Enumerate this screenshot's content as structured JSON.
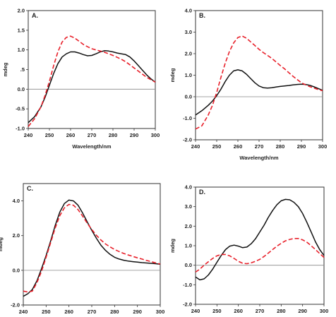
{
  "chart_data": [
    {
      "type": "line",
      "panel": "A.",
      "xlabel": "Wavelength/nm",
      "ylabel": "mdeg",
      "xlim": [
        240,
        300
      ],
      "ylim": [
        -1.0,
        2.0
      ],
      "xticks": [
        "240",
        "250",
        "260",
        "270",
        "280",
        "290",
        "300"
      ],
      "yticks": [
        "-1.0",
        "-0.5",
        "0.0",
        ".5",
        "1.0",
        "1.5",
        "2.0"
      ],
      "yticks_values": [
        -1.0,
        -0.5,
        0.0,
        0.5,
        1.0,
        1.5,
        2.0
      ],
      "series": [
        {
          "color": "#111111",
          "dash": "solid",
          "x": [
            240,
            243,
            246,
            248,
            250,
            252,
            254,
            256,
            258,
            260,
            262,
            264,
            266,
            268,
            270,
            272,
            274,
            276,
            278,
            280,
            282,
            284,
            286,
            288,
            290,
            292,
            294,
            296,
            298,
            300
          ],
          "y": [
            -0.85,
            -0.7,
            -0.45,
            -0.2,
            0.1,
            0.4,
            0.65,
            0.82,
            0.9,
            0.95,
            0.95,
            0.92,
            0.88,
            0.85,
            0.86,
            0.9,
            0.95,
            0.98,
            0.97,
            0.95,
            0.92,
            0.9,
            0.88,
            0.82,
            0.72,
            0.6,
            0.48,
            0.36,
            0.26,
            0.18
          ]
        },
        {
          "color": "#e8202a",
          "dash": "dashed",
          "x": [
            240,
            243,
            246,
            248,
            250,
            252,
            254,
            256,
            258,
            260,
            262,
            264,
            266,
            268,
            270,
            272,
            274,
            276,
            278,
            280,
            282,
            284,
            286,
            288,
            290,
            292,
            294,
            296,
            298,
            300
          ],
          "y": [
            -0.95,
            -0.75,
            -0.45,
            -0.15,
            0.2,
            0.6,
            0.95,
            1.2,
            1.32,
            1.35,
            1.3,
            1.22,
            1.14,
            1.08,
            1.03,
            1.0,
            0.97,
            0.94,
            0.9,
            0.86,
            0.81,
            0.76,
            0.7,
            0.62,
            0.54,
            0.46,
            0.38,
            0.3,
            0.24,
            0.18
          ]
        }
      ]
    },
    {
      "type": "line",
      "panel": "B.",
      "xlabel": "Wavelength/nm",
      "ylabel": "mdeg",
      "xlim": [
        240,
        300
      ],
      "ylim": [
        -2.0,
        4.0
      ],
      "xticks": [
        "240",
        "250",
        "260",
        "270",
        "280",
        "290",
        "300"
      ],
      "yticks": [
        "-2.0",
        "-1.0",
        "0.0",
        "1.0",
        "2.0",
        "3.0",
        "4.0"
      ],
      "yticks_values": [
        -2.0,
        -1.0,
        0.0,
        1.0,
        2.0,
        3.0,
        4.0
      ],
      "series": [
        {
          "color": "#111111",
          "dash": "solid",
          "x": [
            240,
            243,
            246,
            248,
            250,
            252,
            254,
            256,
            258,
            260,
            262,
            264,
            266,
            268,
            270,
            272,
            274,
            276,
            278,
            280,
            282,
            284,
            286,
            288,
            290,
            292,
            294,
            296,
            298,
            300
          ],
          "y": [
            -0.85,
            -0.65,
            -0.4,
            -0.2,
            0.05,
            0.35,
            0.7,
            1.0,
            1.2,
            1.25,
            1.2,
            1.05,
            0.85,
            0.65,
            0.5,
            0.42,
            0.4,
            0.42,
            0.45,
            0.48,
            0.5,
            0.52,
            0.55,
            0.57,
            0.58,
            0.57,
            0.53,
            0.46,
            0.38,
            0.3
          ]
        },
        {
          "color": "#e8202a",
          "dash": "dashed",
          "x": [
            240,
            243,
            246,
            248,
            250,
            252,
            254,
            256,
            258,
            260,
            262,
            264,
            266,
            268,
            270,
            272,
            274,
            276,
            278,
            280,
            282,
            284,
            286,
            288,
            290,
            292,
            294,
            296,
            298,
            300
          ],
          "y": [
            -1.5,
            -1.35,
            -0.85,
            -0.4,
            0.2,
            0.9,
            1.55,
            2.1,
            2.5,
            2.75,
            2.82,
            2.72,
            2.55,
            2.38,
            2.2,
            2.05,
            1.92,
            1.78,
            1.62,
            1.45,
            1.3,
            1.12,
            0.95,
            0.8,
            0.65,
            0.55,
            0.47,
            0.4,
            0.33,
            0.28
          ]
        }
      ]
    },
    {
      "type": "line",
      "panel": "C.",
      "xlabel": "",
      "ylabel": "mdeg",
      "xlim": [
        240,
        300
      ],
      "ylim": [
        -2.0,
        5.0
      ],
      "xticks": [
        "240",
        "250",
        "260",
        "270",
        "280",
        "290",
        "300"
      ],
      "yticks": [
        "-2.0",
        "0.0",
        "2.0",
        "4.0"
      ],
      "yticks_values": [
        -2.0,
        0.0,
        2.0,
        4.0
      ],
      "series": [
        {
          "color": "#111111",
          "dash": "solid",
          "x": [
            240,
            242,
            244,
            246,
            248,
            250,
            252,
            254,
            256,
            258,
            260,
            262,
            264,
            266,
            268,
            270,
            272,
            274,
            276,
            278,
            280,
            282,
            284,
            286,
            288,
            290,
            292,
            294,
            296,
            298,
            300
          ],
          "y": [
            -1.5,
            -1.35,
            -1.1,
            -0.6,
            0.1,
            0.85,
            1.7,
            2.6,
            3.35,
            3.85,
            4.05,
            4.0,
            3.75,
            3.3,
            2.8,
            2.3,
            1.85,
            1.45,
            1.15,
            0.92,
            0.75,
            0.65,
            0.58,
            0.53,
            0.5,
            0.47,
            0.44,
            0.42,
            0.4,
            0.38,
            0.35
          ]
        },
        {
          "color": "#e8202a",
          "dash": "dashed",
          "x": [
            240,
            242,
            244,
            246,
            248,
            250,
            252,
            254,
            256,
            258,
            260,
            262,
            264,
            266,
            268,
            270,
            272,
            274,
            276,
            278,
            280,
            282,
            284,
            286,
            288,
            290,
            292,
            294,
            296,
            298,
            300
          ],
          "y": [
            -1.2,
            -1.25,
            -1.2,
            -0.7,
            -0.05,
            0.75,
            1.6,
            2.45,
            3.15,
            3.6,
            3.8,
            3.75,
            3.5,
            3.12,
            2.72,
            2.35,
            2.02,
            1.75,
            1.52,
            1.35,
            1.2,
            1.08,
            0.97,
            0.88,
            0.8,
            0.72,
            0.65,
            0.57,
            0.5,
            0.43,
            0.36
          ]
        }
      ]
    },
    {
      "type": "line",
      "panel": "D.",
      "xlabel": "",
      "ylabel": "mdeg",
      "xlim": [
        240,
        300
      ],
      "ylim": [
        -2.0,
        4.0
      ],
      "xticks": [
        "240",
        "250",
        "260",
        "270",
        "280",
        "290",
        "300"
      ],
      "yticks": [
        "-2.0",
        "-1.0",
        "0.0",
        "1.0",
        "2.0",
        "3.0",
        "4.0"
      ],
      "yticks_values": [
        -2.0,
        -1.0,
        0.0,
        1.0,
        2.0,
        3.0,
        4.0
      ],
      "series": [
        {
          "color": "#111111",
          "dash": "solid",
          "x": [
            240,
            242,
            244,
            246,
            248,
            250,
            252,
            254,
            256,
            258,
            260,
            262,
            264,
            266,
            268,
            270,
            272,
            274,
            276,
            278,
            280,
            282,
            284,
            286,
            288,
            290,
            292,
            294,
            296,
            298,
            300
          ],
          "y": [
            -0.6,
            -0.75,
            -0.7,
            -0.5,
            -0.2,
            0.15,
            0.5,
            0.8,
            0.98,
            1.03,
            0.98,
            0.9,
            0.93,
            1.1,
            1.35,
            1.7,
            2.05,
            2.45,
            2.8,
            3.1,
            3.3,
            3.37,
            3.35,
            3.22,
            3.0,
            2.65,
            2.2,
            1.7,
            1.2,
            0.8,
            0.5
          ]
        },
        {
          "color": "#e8202a",
          "dash": "dashed",
          "x": [
            240,
            242,
            244,
            246,
            248,
            250,
            252,
            254,
            256,
            258,
            260,
            262,
            264,
            266,
            268,
            270,
            272,
            274,
            276,
            278,
            280,
            282,
            284,
            286,
            288,
            290,
            292,
            294,
            296,
            298,
            300
          ],
          "y": [
            -0.35,
            -0.2,
            0.0,
            0.18,
            0.35,
            0.48,
            0.55,
            0.55,
            0.48,
            0.35,
            0.2,
            0.1,
            0.08,
            0.12,
            0.2,
            0.3,
            0.45,
            0.62,
            0.8,
            0.98,
            1.12,
            1.25,
            1.32,
            1.37,
            1.37,
            1.3,
            1.18,
            1.0,
            0.8,
            0.6,
            0.4
          ]
        }
      ]
    }
  ]
}
